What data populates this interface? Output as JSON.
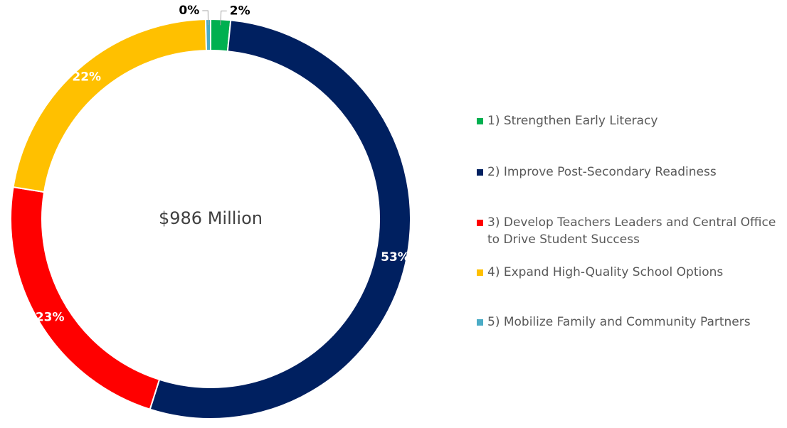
{
  "chart_data": {
    "type": "donut",
    "center_label": "$986 Million",
    "categories": [
      "1) Strengthen Early Literacy",
      "2) Improve Post-Secondary Readiness",
      "3) Develop Teachers Leaders and Central Office to Drive Student Success",
      "4) Expand High-Quality School Options",
      "5) Mobilize Family and Community Partners"
    ],
    "values": [
      1.6,
      53.2,
      22.6,
      22.0,
      0.4
    ],
    "value_labels": [
      "2%",
      "53%",
      "23%",
      "22%",
      "0%"
    ],
    "colors": [
      "#00b050",
      "#002060",
      "#ff0000",
      "#ffc000",
      "#4bacc6"
    ],
    "legend": "right"
  }
}
